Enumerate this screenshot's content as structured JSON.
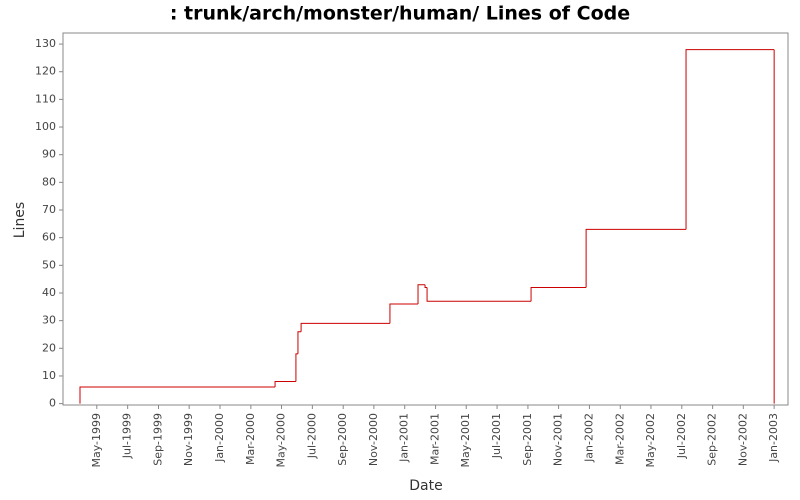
{
  "chart_data": {
    "type": "step-line",
    "title": ": trunk/arch/monster/human/ Lines of Code",
    "x_label": "Date",
    "y_label": "Lines",
    "color": "#cc0000",
    "x": [
      1999.242,
      1999.242,
      2000.298,
      2000.411,
      2000.422,
      2000.439,
      2000.92,
      2001.072,
      2001.11,
      2001.121,
      2001.684,
      2001.982,
      2002.523,
      2003.0
    ],
    "values": [
      0,
      6,
      8,
      18,
      26,
      29,
      36,
      43,
      42,
      37,
      42,
      63,
      128,
      0
    ],
    "xlim": [
      1999.15,
      2003.075
    ],
    "ylim": [
      -0.5,
      134
    ],
    "yticks": [
      0,
      10,
      20,
      30,
      40,
      50,
      60,
      70,
      80,
      90,
      100,
      110,
      120,
      130
    ],
    "xticks": [
      {
        "value": 1999.333,
        "label": "May-1999"
      },
      {
        "value": 1999.5,
        "label": "Jul-1999"
      },
      {
        "value": 1999.667,
        "label": "Sep-1999"
      },
      {
        "value": 1999.833,
        "label": "Nov-1999"
      },
      {
        "value": 2000.0,
        "label": "Jan-2000"
      },
      {
        "value": 2000.167,
        "label": "Mar-2000"
      },
      {
        "value": 2000.333,
        "label": "May-2000"
      },
      {
        "value": 2000.5,
        "label": "Jul-2000"
      },
      {
        "value": 2000.667,
        "label": "Sep-2000"
      },
      {
        "value": 2000.833,
        "label": "Nov-2000"
      },
      {
        "value": 2001.0,
        "label": "Jan-2001"
      },
      {
        "value": 2001.167,
        "label": "Mar-2001"
      },
      {
        "value": 2001.333,
        "label": "May-2001"
      },
      {
        "value": 2001.5,
        "label": "Jul-2001"
      },
      {
        "value": 2001.667,
        "label": "Sep-2001"
      },
      {
        "value": 2001.833,
        "label": "Nov-2001"
      },
      {
        "value": 2002.0,
        "label": "Jan-2002"
      },
      {
        "value": 2002.167,
        "label": "Mar-2002"
      },
      {
        "value": 2002.333,
        "label": "May-2002"
      },
      {
        "value": 2002.5,
        "label": "Jul-2002"
      },
      {
        "value": 2002.667,
        "label": "Sep-2002"
      },
      {
        "value": 2002.833,
        "label": "Nov-2002"
      },
      {
        "value": 2003.0,
        "label": "Jan-2003"
      }
    ],
    "grid": false
  }
}
